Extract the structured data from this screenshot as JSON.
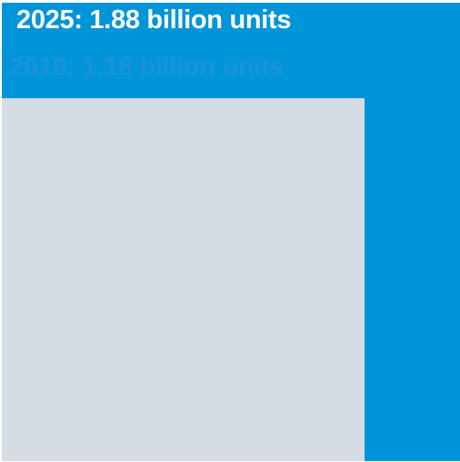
{
  "chart_data": {
    "type": "area-comparison",
    "unit": "billion units",
    "series": [
      {
        "name": "2025",
        "value": 1.88,
        "label": "2025: 1.88 billion units",
        "color": "#0095d9"
      },
      {
        "name": "2019",
        "value": 1.18,
        "label": "2019: 1.18 billion units",
        "color": "#d5dce3"
      }
    ],
    "label_colors": {
      "2025": "#ffffff",
      "2019": "#1a93d6"
    }
  }
}
